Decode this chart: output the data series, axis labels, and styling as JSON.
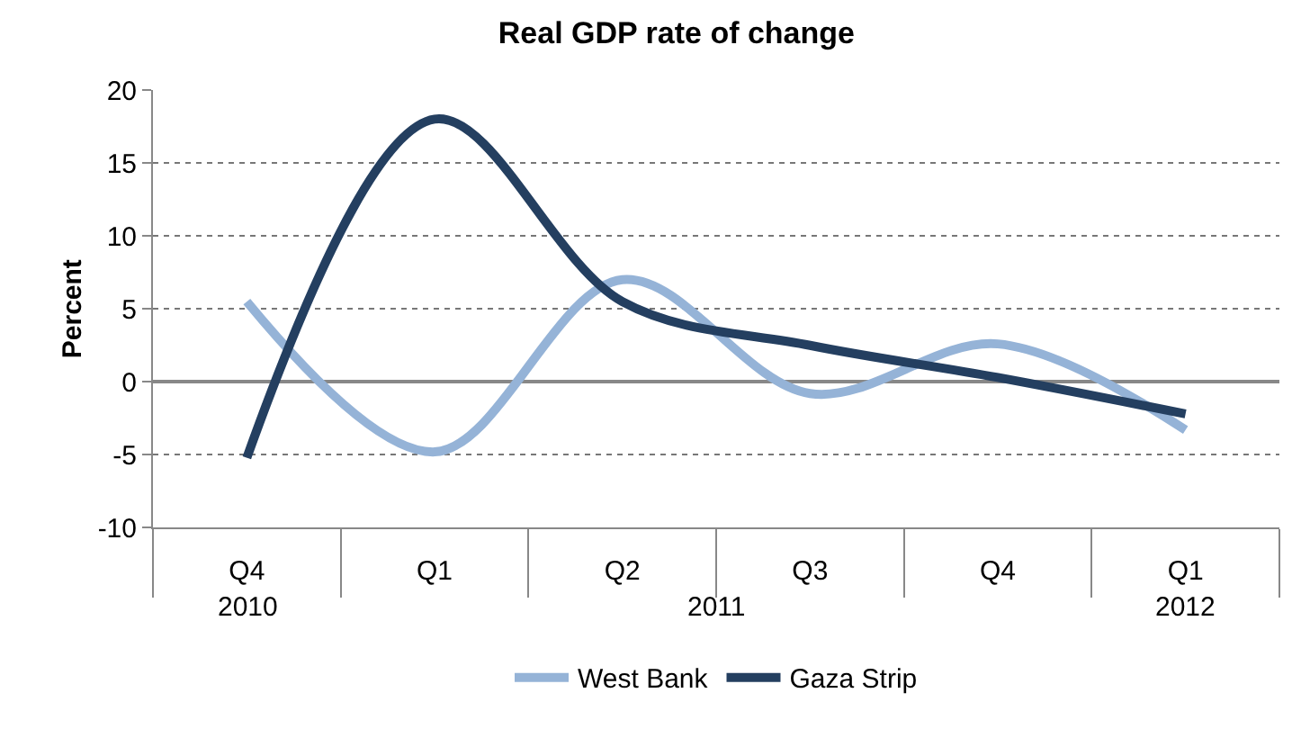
{
  "chart_data": {
    "type": "line",
    "title": "Real GDP rate of change",
    "ylabel": "Percent",
    "categories": [
      "Q4",
      "Q1",
      "Q2",
      "Q3",
      "Q4",
      "Q1"
    ],
    "annotations": [
      "2010",
      "2011",
      "2012"
    ],
    "series": [
      {
        "name": "West Bank",
        "color": "#95b3d7",
        "values": [
          5.5,
          -4.8,
          7,
          -0.8,
          2.6,
          -3.3
        ]
      },
      {
        "name": "Gaza Strip",
        "color": "#243f60",
        "values": [
          -5.2,
          18,
          5.5,
          2.5,
          0.3,
          -2.2
        ]
      }
    ],
    "ylim": [
      -10,
      20
    ],
    "yticks": [
      -10,
      -5,
      0,
      5,
      10,
      15,
      20
    ],
    "grid": "y",
    "legend": "bottom",
    "marker": "none",
    "line_style": "solid"
  }
}
